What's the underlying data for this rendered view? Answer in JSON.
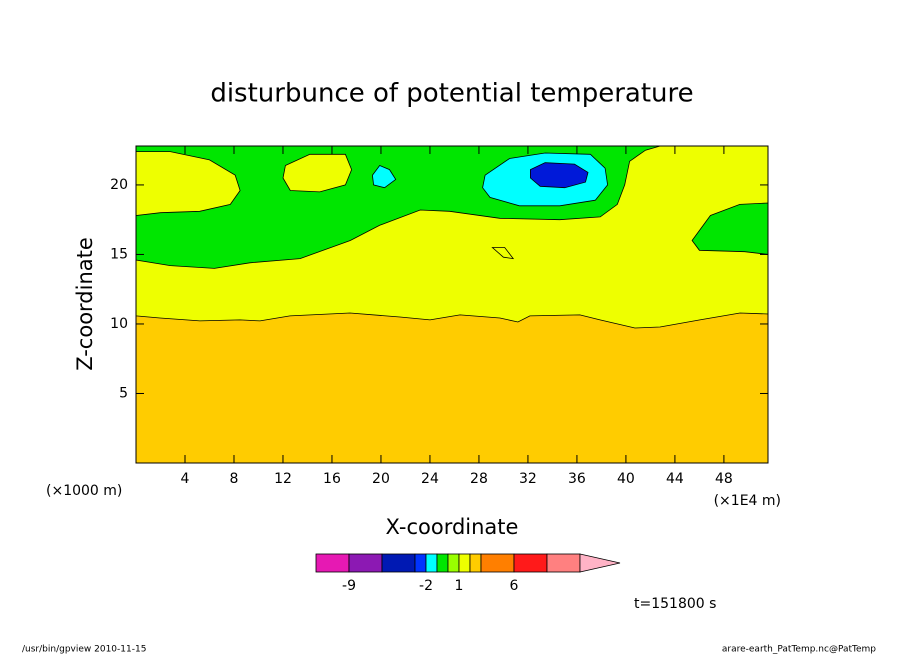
{
  "chart_data": {
    "type": "contour",
    "title": "disturbunce of potential temperature",
    "x_label": "X-coordinate",
    "y_label": "Z-coordinate",
    "x_unit_left": "(×1000 m)",
    "x_unit_right": "(×1E4 m)",
    "time_label": "t=151800 s",
    "xlim": [
      0,
      51.6
    ],
    "ylim": [
      0,
      22.8
    ],
    "xticks": [
      4,
      8,
      12,
      16,
      20,
      24,
      28,
      32,
      36,
      40,
      44,
      48
    ],
    "yticks": [
      5,
      10,
      15,
      20
    ],
    "background_color": "#ffcc00",
    "regions": [
      {
        "color": "#eeff00",
        "x": [
          0,
          1.96,
          5.22,
          8.49,
          10.12,
          12.57,
          17.47,
          21.55,
          24.0,
          26.45,
          29.71,
          31.18,
          32.16,
          36.24,
          37.88,
          40.73,
          42.78,
          46.04,
          49.31,
          51.6,
          51.6,
          0
        ],
        "z": [
          10.58,
          10.43,
          10.22,
          10.29,
          10.22,
          10.58,
          10.79,
          10.5,
          10.29,
          10.65,
          10.43,
          10.14,
          10.58,
          10.65,
          10.29,
          9.71,
          9.78,
          10.29,
          10.79,
          10.72,
          22.8,
          22.8
        ]
      },
      {
        "color": "#00e600",
        "x": [
          0,
          42.8,
          41.6,
          40.3,
          39.9,
          39.3,
          37.9,
          34.6,
          29.7,
          25.6,
          23.2,
          19.9,
          17.5,
          13.4,
          9.3,
          6.4,
          2.8,
          0
        ],
        "z": [
          22.8,
          22.8,
          22.5,
          21.7,
          20.0,
          18.6,
          17.7,
          17.5,
          17.6,
          18.1,
          18.2,
          17.1,
          16.0,
          14.7,
          14.4,
          14.0,
          14.2,
          14.6
        ]
      },
      {
        "color": "#eeff00",
        "x": [
          0,
          2.8,
          6.0,
          8.1,
          8.5,
          7.7,
          5.2,
          2.0,
          0
        ],
        "z": [
          22.4,
          22.4,
          21.8,
          20.7,
          19.6,
          18.6,
          18.1,
          18.0,
          17.8
        ]
      },
      {
        "color": "#eeff00",
        "x": [
          12.2,
          14.2,
          17.1,
          17.6,
          17.1,
          15.0,
          12.6,
          12.0
        ],
        "z": [
          21.4,
          22.2,
          22.2,
          21.1,
          20.0,
          19.5,
          19.6,
          20.5
        ]
      },
      {
        "color": "#00ffff",
        "x": [
          19.3,
          19.9,
          20.7,
          21.2,
          20.3,
          19.4
        ],
        "z": [
          20.7,
          21.4,
          21.1,
          20.4,
          19.8,
          20.0
        ]
      },
      {
        "color": "#00ffff",
        "x": [
          28.5,
          30.5,
          33.4,
          37.1,
          38.3,
          38.5,
          37.5,
          34.6,
          31.3,
          28.9,
          28.3
        ],
        "z": [
          20.7,
          21.9,
          22.3,
          22.2,
          21.2,
          20.0,
          18.9,
          18.5,
          18.5,
          19.1,
          19.8
        ]
      },
      {
        "color": "#0019d9",
        "x": [
          32.2,
          33.4,
          35.8,
          36.9,
          36.7,
          35.0,
          33.0,
          32.2
        ],
        "z": [
          21.1,
          21.6,
          21.5,
          20.9,
          20.2,
          19.8,
          19.9,
          20.5
        ]
      },
      {
        "color": "#00e600",
        "x": [
          45.4,
          46.9,
          49.3,
          51.6,
          51.6,
          49.7,
          46.0
        ],
        "z": [
          16.0,
          17.8,
          18.6,
          18.7,
          15.0,
          15.2,
          15.3
        ]
      },
      {
        "color": "#eeff00",
        "x": [
          29.1,
          30.1,
          30.8,
          30.0
        ],
        "z": [
          15.5,
          15.5,
          14.7,
          14.8
        ]
      }
    ],
    "colorbar": {
      "levels": [
        -12,
        -9,
        -6,
        -3,
        -2,
        -1,
        0,
        1,
        2,
        3,
        6,
        9,
        12
      ],
      "colors": [
        "#e619b3",
        "#8c19b3",
        "#0019b3",
        "#0033ff",
        "#00ffff",
        "#00e600",
        "#99ff00",
        "#eeff00",
        "#ffcc00",
        "#ff7f00",
        "#ff1a1a",
        "#ff8080"
      ],
      "extend_color": "#ffb3c6",
      "ticks": [
        -9,
        -2,
        1,
        6
      ]
    }
  },
  "footer": {
    "left": "/usr/bin/gpview   2010-11-15",
    "right": "arare-earth_PatTemp.nc@PatTemp"
  }
}
